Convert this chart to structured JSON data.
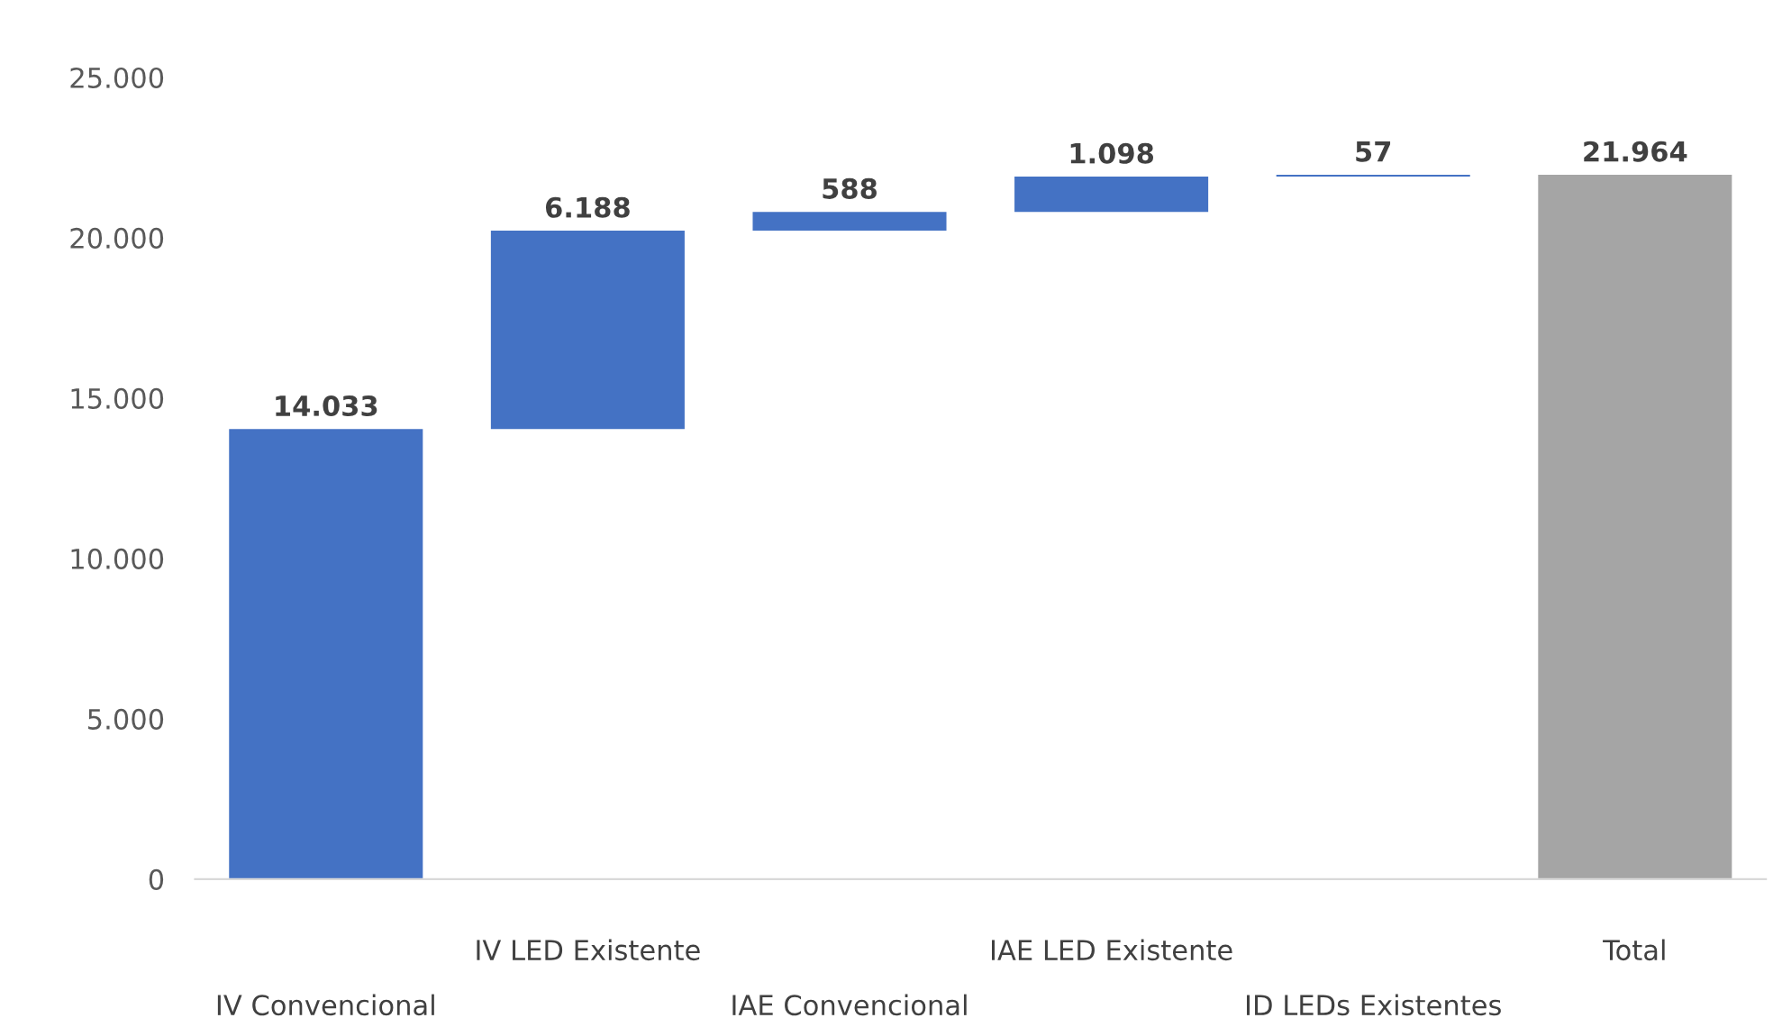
{
  "chart_data": {
    "type": "bar",
    "categories": [
      "IV Convencional",
      "IV LED Existente",
      "IAE Convencional",
      "IAE LED Existente",
      "ID LEDs Existentes",
      "Total"
    ],
    "values": [
      14033,
      6188,
      588,
      1098,
      57,
      21964
    ],
    "base": [
      0,
      14033,
      20221,
      20809,
      21907,
      0
    ],
    "colors": [
      "#4472c4",
      "#4472c4",
      "#4472c4",
      "#4472c4",
      "#4472c4",
      "#a5a5a5"
    ],
    "value_labels": [
      "14.033",
      "6.188",
      "588",
      "1.098",
      "57",
      "21.964"
    ],
    "ylim": [
      0,
      25000
    ],
    "yticks": [
      {
        "value": 0,
        "label": "0"
      },
      {
        "value": 5000,
        "label": "5.000"
      },
      {
        "value": 10000,
        "label": "10.000"
      },
      {
        "value": 15000,
        "label": "15.000"
      },
      {
        "value": 20000,
        "label": "20.000"
      },
      {
        "value": 25000,
        "label": "25.000"
      }
    ],
    "grid": false
  }
}
